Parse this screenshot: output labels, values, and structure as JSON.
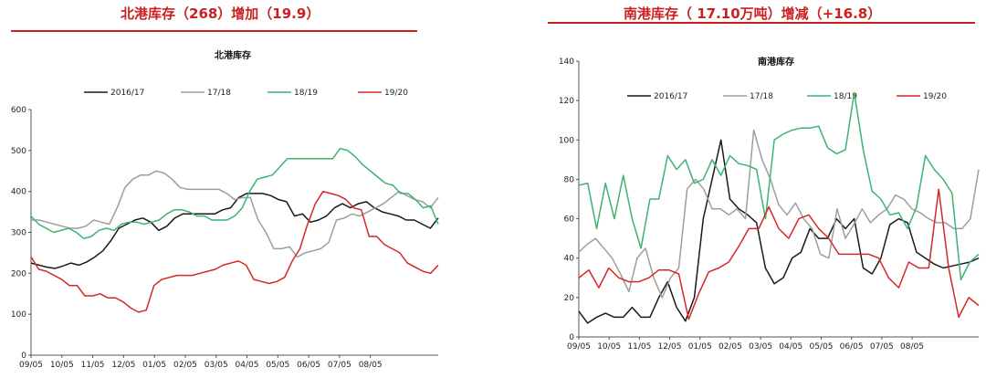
{
  "headers": {
    "left": "北港库存（268）增加（19.9）",
    "right": "南港库存（ 17.10万吨）增减（+16.8）"
  },
  "colors": {
    "2016/17": "#1a1a1a",
    "17/18": "#9e9e9e",
    "18/19": "#3cb371",
    "19/20": "#d62728",
    "accent": "#cc1f1f"
  },
  "chart_data": [
    {
      "type": "line",
      "title": "北港库存",
      "xlabel": "",
      "ylabel": "",
      "ylim": [
        0,
        600
      ],
      "yticks": [
        "0",
        "100",
        "200",
        "300",
        "400",
        "500",
        "600"
      ],
      "xticks": [
        "09/05",
        "10/05",
        "11/05",
        "12/05",
        "01/05",
        "02/05",
        "03/05",
        "04/05",
        "05/05",
        "06/05",
        "07/05",
        "08/05"
      ],
      "legend": [
        "2016/17",
        "17/18",
        "18/19",
        "19/20"
      ],
      "legend_position": "top",
      "series": [
        {
          "name": "2016/17",
          "values": [
            225,
            220,
            215,
            212,
            218,
            225,
            220,
            228,
            240,
            255,
            280,
            310,
            320,
            330,
            335,
            325,
            305,
            315,
            335,
            345,
            345,
            345,
            345,
            345,
            355,
            360,
            385,
            395,
            395,
            395,
            390,
            380,
            375,
            340,
            345,
            325,
            330,
            340,
            360,
            370,
            360,
            370,
            375,
            360,
            350,
            345,
            340,
            330,
            330,
            320,
            310,
            335
          ]
        },
        {
          "name": "17/18",
          "values": [
            330,
            330,
            325,
            320,
            315,
            310,
            310,
            315,
            330,
            325,
            320,
            360,
            410,
            430,
            440,
            440,
            450,
            445,
            430,
            410,
            405,
            405,
            405,
            405,
            405,
            395,
            380,
            385,
            385,
            330,
            300,
            260,
            260,
            265,
            240,
            250,
            255,
            260,
            275,
            330,
            335,
            345,
            340,
            350,
            360,
            370,
            385,
            400,
            390,
            380,
            375,
            360,
            385
          ]
        },
        {
          "name": "18/19",
          "values": [
            340,
            320,
            310,
            300,
            305,
            310,
            300,
            285,
            290,
            305,
            310,
            305,
            320,
            325,
            325,
            320,
            325,
            330,
            345,
            355,
            355,
            350,
            340,
            340,
            330,
            330,
            330,
            340,
            360,
            400,
            430,
            435,
            440,
            460,
            480,
            480,
            480,
            480,
            480,
            480,
            480,
            505,
            500,
            485,
            465,
            450,
            435,
            420,
            415,
            395,
            395,
            380,
            360,
            365,
            320
          ]
        },
        {
          "name": "19/20",
          "values": [
            240,
            210,
            205,
            195,
            185,
            170,
            170,
            145,
            145,
            150,
            140,
            140,
            130,
            115,
            105,
            110,
            170,
            185,
            190,
            195,
            195,
            195,
            200,
            205,
            210,
            220,
            225,
            230,
            220,
            185,
            180,
            175,
            180,
            190,
            230,
            260,
            320,
            370,
            400,
            395,
            390,
            380,
            360,
            355,
            290,
            290,
            270,
            260,
            250,
            225,
            215,
            205,
            200,
            220
          ]
        }
      ]
    },
    {
      "type": "line",
      "title": "南港库存",
      "xlabel": "",
      "ylabel": "",
      "ylim": [
        0,
        140
      ],
      "yticks": [
        "0",
        "20",
        "40",
        "60",
        "80",
        "100",
        "120",
        "140"
      ],
      "xticks": [
        "09/05",
        "10/05",
        "11/05",
        "12/05",
        "01/05",
        "02/05",
        "03/05",
        "04/05",
        "05/05",
        "06/05",
        "07/05",
        "08/05"
      ],
      "legend": [
        "2016/17",
        "17/18",
        "18/19",
        "19/20"
      ],
      "legend_position": "top",
      "series": [
        {
          "name": "2016/17",
          "values": [
            13,
            7,
            10,
            12,
            10,
            10,
            15,
            10,
            10,
            20,
            28,
            15,
            8,
            20,
            60,
            80,
            100,
            70,
            65,
            62,
            58,
            35,
            27,
            30,
            40,
            43,
            55,
            50,
            50,
            60,
            55,
            60,
            35,
            32,
            40,
            57,
            60,
            58,
            43,
            40,
            37,
            35,
            36,
            37,
            38,
            40
          ]
        },
        {
          "name": "17/18",
          "values": [
            43,
            47,
            50,
            45,
            40,
            32,
            23,
            40,
            45,
            30,
            20,
            30,
            35,
            75,
            80,
            75,
            65,
            65,
            62,
            65,
            60,
            105,
            90,
            80,
            67,
            62,
            68,
            60,
            55,
            42,
            40,
            65,
            50,
            57,
            65,
            58,
            62,
            65,
            72,
            70,
            65,
            63,
            60,
            58,
            58,
            55,
            55,
            60,
            85
          ]
        },
        {
          "name": "18/19",
          "values": [
            77,
            78,
            55,
            78,
            60,
            82,
            60,
            45,
            70,
            70,
            92,
            85,
            90,
            78,
            80,
            90,
            82,
            92,
            88,
            87,
            85,
            60,
            100,
            103,
            105,
            106,
            106,
            107,
            96,
            93,
            95,
            124,
            95,
            74,
            70,
            62,
            63,
            55,
            66,
            92,
            85,
            80,
            73,
            29,
            38,
            42
          ]
        },
        {
          "name": "19/20",
          "values": [
            30,
            34,
            25,
            35,
            30,
            28,
            28,
            30,
            34,
            34,
            32,
            9,
            22,
            33,
            35,
            38,
            46,
            55,
            55,
            66,
            55,
            50,
            60,
            62,
            55,
            50,
            42,
            42,
            42,
            42,
            40,
            30,
            25,
            38,
            35,
            35,
            75,
            35,
            10,
            20,
            16
          ]
        }
      ]
    }
  ]
}
